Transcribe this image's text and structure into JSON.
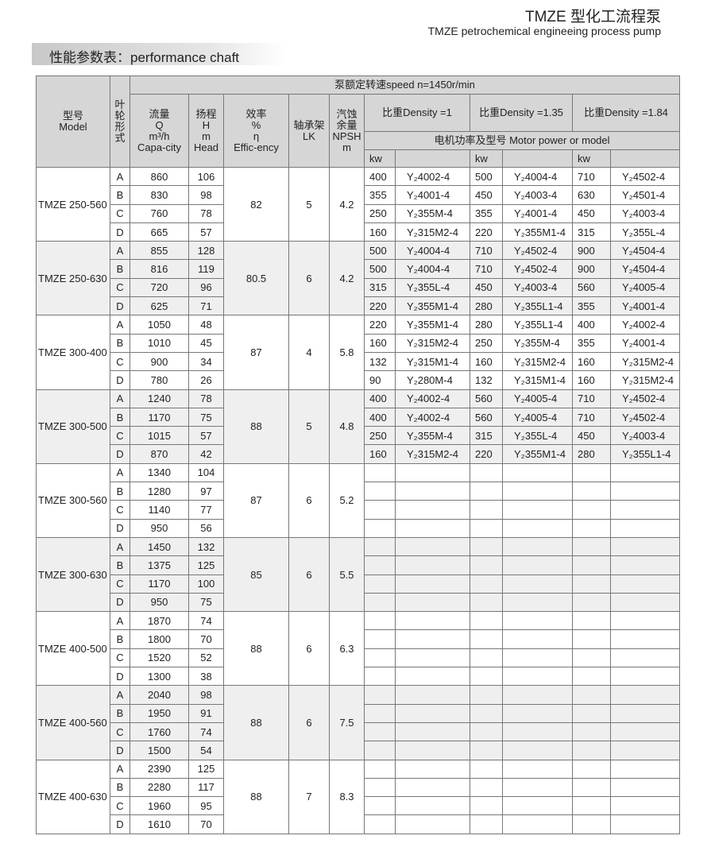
{
  "header": {
    "title_cn": "TMZE 型化工流程泵",
    "title_en": "TMZE petrochemical engineeing process pump",
    "section": "性能参数表：performance chaft"
  },
  "table_head": {
    "model": "型号\nModel",
    "impeller": "叶\n轮\n形\n式",
    "speed": "泵额定转速speed n=1450r/min",
    "flow": "流量\nQ\nm³/h\nCapa-city",
    "head": "扬程\nH\nm\nHead",
    "eff": "效率\n%\nη\nEffic-ency",
    "lk": "轴承架\nLK",
    "npsh": "汽蚀\n余量\nNPSH\nm",
    "density": [
      "比重Density =1",
      "比重Density =1.35",
      "比重Density =1.84"
    ],
    "motor": "电机功率及型号  Motor power or model",
    "kw": "kw"
  },
  "groups": [
    {
      "model": "TMZE 250-560",
      "eff": "82",
      "lk": "5",
      "npsh": "4.2",
      "rows": [
        {
          "type": "A",
          "q": "860",
          "h": "106",
          "m": [
            "400",
            "Y₂4002-4",
            "500",
            "Y₂4004-4",
            "710",
            "Y₂4502-4"
          ]
        },
        {
          "type": "B",
          "q": "830",
          "h": "98",
          "m": [
            "355",
            "Y₂4001-4",
            "450",
            "Y₂4003-4",
            "630",
            "Y₂4501-4"
          ]
        },
        {
          "type": "C",
          "q": "760",
          "h": "78",
          "m": [
            "250",
            "Y₂355M-4",
            "355",
            "Y₂4001-4",
            "450",
            "Y₂4003-4"
          ]
        },
        {
          "type": "D",
          "q": "665",
          "h": "57",
          "m": [
            "160",
            "Y₂315M2-4",
            "220",
            "Y₂355M1-4",
            "315",
            "Y₂355L-4"
          ]
        }
      ]
    },
    {
      "model": "TMZE 250-630",
      "eff": "80.5",
      "lk": "6",
      "npsh": "4.2",
      "rows": [
        {
          "type": "A",
          "q": "855",
          "h": "128",
          "m": [
            "500",
            "Y₂4004-4",
            "710",
            "Y₂4502-4",
            "900",
            "Y₂4504-4"
          ]
        },
        {
          "type": "B",
          "q": "816",
          "h": "119",
          "m": [
            "500",
            "Y₂4004-4",
            "710",
            "Y₂4502-4",
            "900",
            "Y₂4504-4"
          ]
        },
        {
          "type": "C",
          "q": "720",
          "h": "96",
          "m": [
            "315",
            "Y₂355L-4",
            "450",
            "Y₂4003-4",
            "560",
            "Y₂4005-4"
          ]
        },
        {
          "type": "D",
          "q": "625",
          "h": "71",
          "m": [
            "220",
            "Y₂355M1-4",
            "280",
            "Y₂355L1-4",
            "355",
            "Y₂4001-4"
          ]
        }
      ]
    },
    {
      "model": "TMZE 300-400",
      "eff": "87",
      "lk": "4",
      "npsh": "5.8",
      "rows": [
        {
          "type": "A",
          "q": "1050",
          "h": "48",
          "m": [
            "220",
            "Y₂355M1-4",
            "280",
            "Y₂355L1-4",
            "400",
            "Y₂4002-4"
          ]
        },
        {
          "type": "B",
          "q": "1010",
          "h": "45",
          "m": [
            "160",
            "Y₂315M2-4",
            "250",
            "Y₂355M-4",
            "355",
            "Y₂4001-4"
          ]
        },
        {
          "type": "C",
          "q": "900",
          "h": "34",
          "m": [
            "132",
            "Y₂315M1-4",
            "160",
            "Y₂315M2-4",
            "160",
            "Y₂315M2-4"
          ]
        },
        {
          "type": "D",
          "q": "780",
          "h": "26",
          "m": [
            "90",
            "Y₂280M-4",
            "132",
            "Y₂315M1-4",
            "160",
            "Y₂315M2-4"
          ]
        }
      ]
    },
    {
      "model": "TMZE 300-500",
      "eff": "88",
      "lk": "5",
      "npsh": "4.8",
      "rows": [
        {
          "type": "A",
          "q": "1240",
          "h": "78",
          "m": [
            "400",
            "Y₂4002-4",
            "560",
            "Y₂4005-4",
            "710",
            "Y₂4502-4"
          ]
        },
        {
          "type": "B",
          "q": "1170",
          "h": "75",
          "m": [
            "400",
            "Y₂4002-4",
            "560",
            "Y₂4005-4",
            "710",
            "Y₂4502-4"
          ]
        },
        {
          "type": "C",
          "q": "1015",
          "h": "57",
          "m": [
            "250",
            "Y₂355M-4",
            "315",
            "Y₂355L-4",
            "450",
            "Y₂4003-4"
          ]
        },
        {
          "type": "D",
          "q": "870",
          "h": "42",
          "m": [
            "160",
            "Y₂315M2-4",
            "220",
            "Y₂355M1-4",
            "280",
            "Y₂355L1-4"
          ]
        }
      ]
    },
    {
      "model": "TMZE 300-560",
      "eff": "87",
      "lk": "6",
      "npsh": "5.2",
      "rows": [
        {
          "type": "A",
          "q": "1340",
          "h": "104"
        },
        {
          "type": "B",
          "q": "1280",
          "h": "97"
        },
        {
          "type": "C",
          "q": "1140",
          "h": "77"
        },
        {
          "type": "D",
          "q": "950",
          "h": "56"
        }
      ]
    },
    {
      "model": "TMZE 300-630",
      "eff": "85",
      "lk": "6",
      "npsh": "5.5",
      "rows": [
        {
          "type": "A",
          "q": "1450",
          "h": "132"
        },
        {
          "type": "B",
          "q": "1375",
          "h": "125"
        },
        {
          "type": "C",
          "q": "1170",
          "h": "100"
        },
        {
          "type": "D",
          "q": "950",
          "h": "75"
        }
      ]
    },
    {
      "model": "TMZE 400-500",
      "eff": "88",
      "lk": "6",
      "npsh": "6.3",
      "rows": [
        {
          "type": "A",
          "q": "1870",
          "h": "74"
        },
        {
          "type": "B",
          "q": "1800",
          "h": "70"
        },
        {
          "type": "C",
          "q": "1520",
          "h": "52"
        },
        {
          "type": "D",
          "q": "1300",
          "h": "38"
        }
      ]
    },
    {
      "model": "TMZE 400-560",
      "eff": "88",
      "lk": "6",
      "npsh": "7.5",
      "rows": [
        {
          "type": "A",
          "q": "2040",
          "h": "98"
        },
        {
          "type": "B",
          "q": "1950",
          "h": "91"
        },
        {
          "type": "C",
          "q": "1760",
          "h": "74"
        },
        {
          "type": "D",
          "q": "1500",
          "h": "54"
        }
      ]
    },
    {
      "model": "TMZE 400-630",
      "eff": "88",
      "lk": "7",
      "npsh": "8.3",
      "rows": [
        {
          "type": "A",
          "q": "2390",
          "h": "125"
        },
        {
          "type": "B",
          "q": "2280",
          "h": "117"
        },
        {
          "type": "C",
          "q": "1960",
          "h": "95"
        },
        {
          "type": "D",
          "q": "1610",
          "h": "70"
        }
      ]
    }
  ]
}
